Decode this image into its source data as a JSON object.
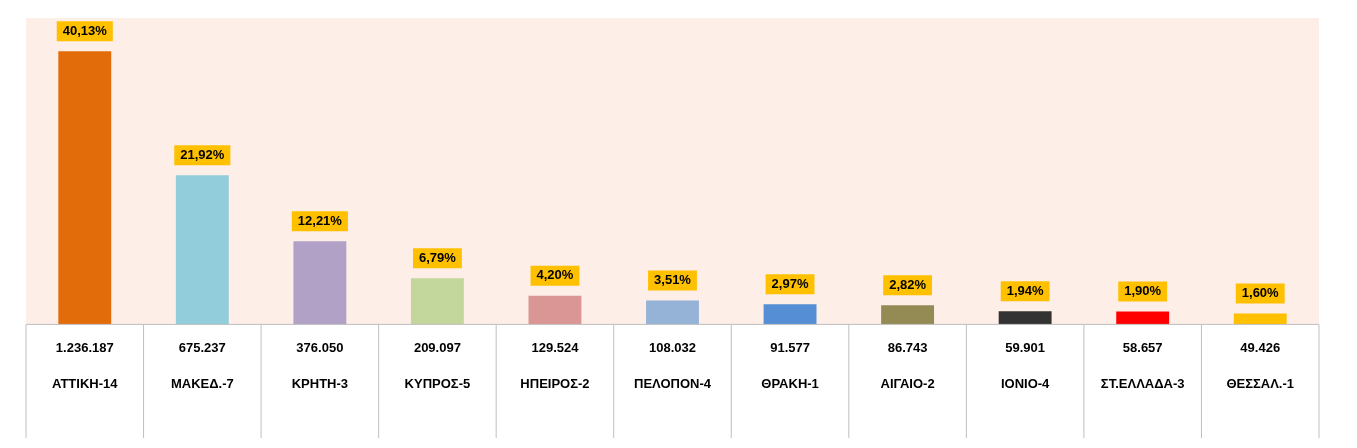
{
  "chart_data": {
    "type": "bar",
    "categories": [
      "ΑΤΤΙΚΗ-14",
      "ΜΑΚΕΔ.-7",
      "ΚΡΗΤΗ-3",
      "ΚΥΠΡΟΣ-5",
      "ΗΠΕΙΡΟΣ-2",
      "ΠΕΛΟΠΟΝ-4",
      "ΘΡΑΚΗ-1",
      "ΑΙΓΑΙΟ-2",
      "ΙΟΝΙΟ-4",
      "ΣΤ.ΕΛΛΑΔΑ-3",
      "ΘΕΣΣΑΛ.-1"
    ],
    "values": [
      40.13,
      21.92,
      12.21,
      6.79,
      4.2,
      3.51,
      2.97,
      2.82,
      1.94,
      1.9,
      1.6
    ],
    "colors": [
      "#e36c0a",
      "#92cddc",
      "#b2a1c7",
      "#c3d69b",
      "#d99694",
      "#95b3d7",
      "#558ed5",
      "#948a54",
      "#333333",
      "#ff0000",
      "#ffc000"
    ],
    "value_labels": [
      "40,13%",
      "21,92%",
      "12,21%",
      "6,79%",
      "4,20%",
      "3,51%",
      "2,97%",
      "2,82%",
      "1,94%",
      "1,90%",
      "1,60%"
    ],
    "annotations": [
      "1.236.187",
      "675.237",
      "376.050",
      "209.097",
      "129.524",
      "108.032",
      "91.577",
      "86.743",
      "59.901",
      "58.657",
      "49.426"
    ],
    "grid": false,
    "legend": false
  }
}
